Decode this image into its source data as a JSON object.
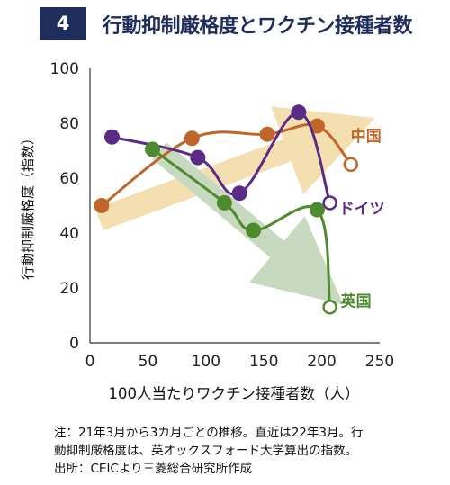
{
  "header": {
    "number": "4",
    "title": "行動抑制厳格度とワクチン接種者数"
  },
  "note": "注：21年3月から3カ月ごとの推移。直近は22年3月。行\n動抑制厳格度は、英オックスフォード大学算出の指数。\n出所：CEICより三菱総合研究所作成",
  "colors": {
    "china": "#c0662a",
    "germany": "#5b2a86",
    "uk": "#4e8a2e",
    "arrow_up": "#f3dfb0",
    "arrow_down": "#c7d9bf",
    "header_bg": "#1f2d5a"
  },
  "chart_data": {
    "type": "line",
    "xlabel": "100人当たりワクチン接種者数（人）",
    "ylabel": "行動抑制厳格度（指数）",
    "xlim": [
      0,
      250
    ],
    "ylim": [
      0,
      100
    ],
    "xticks": [
      "0",
      "50",
      "100",
      "150",
      "200",
      "250"
    ],
    "yticks": [
      "0",
      "20",
      "40",
      "60",
      "80",
      "100"
    ],
    "grid": false,
    "series": [
      {
        "name": "中国",
        "color": "#c0662a",
        "x": [
          10,
          88,
          153,
          196,
          225
        ],
        "y": [
          50,
          74.5,
          76,
          79,
          65
        ]
      },
      {
        "name": "ドイツ",
        "color": "#5b2a86",
        "x": [
          19,
          93,
          129,
          180,
          207
        ],
        "y": [
          75,
          67.5,
          54.5,
          84,
          51
        ]
      },
      {
        "name": "英国",
        "color": "#4e8a2e",
        "x": [
          54,
          116,
          141,
          196,
          207
        ],
        "y": [
          70.5,
          51,
          41,
          48.5,
          13
        ]
      }
    ],
    "legend_placement": "labels at end of each series (right)"
  }
}
